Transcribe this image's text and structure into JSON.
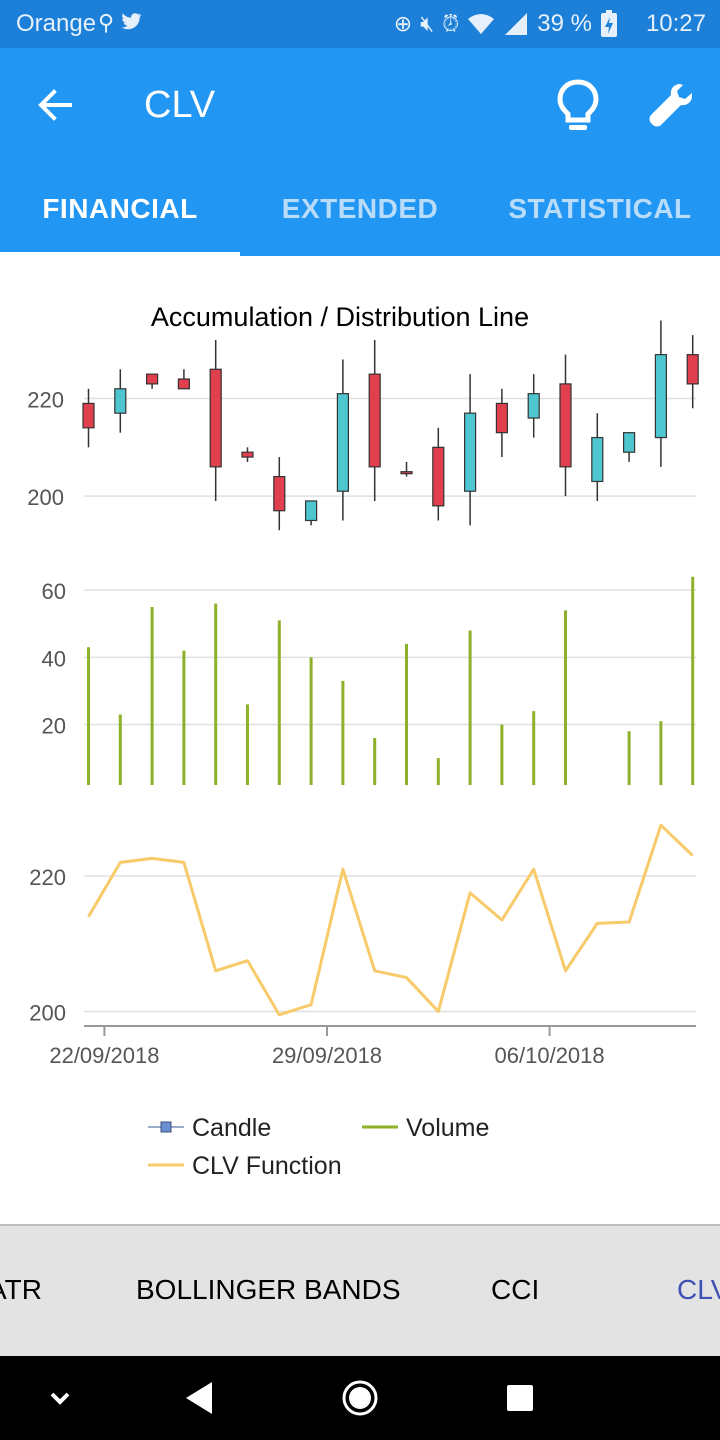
{
  "status_bar": {
    "carrier": "Orange",
    "left_icons": [
      "usb-icon",
      "twitter-icon"
    ],
    "right_icons": [
      "data-saver-icon",
      "mute-icon",
      "alarm-icon",
      "wifi-icon",
      "signal-icon"
    ],
    "battery": "39 %",
    "time": "10:27"
  },
  "app_bar": {
    "title": "CLV",
    "back_icon": "arrow-back-icon",
    "action_icons": [
      "lightbulb-icon",
      "wrench-icon"
    ]
  },
  "tabs": [
    {
      "label": "FINANCIAL",
      "active": true
    },
    {
      "label": "EXTENDED",
      "active": false
    },
    {
      "label": "STATISTICAL",
      "active": false
    }
  ],
  "bottom_tabs": [
    {
      "label": "ATR",
      "selected": false
    },
    {
      "label": "BOLLINGER BANDS",
      "selected": false
    },
    {
      "label": "CCI",
      "selected": false
    },
    {
      "label": "CLV",
      "selected": true
    }
  ],
  "colors": {
    "app_bar": "#2196f3",
    "status_bar": "#1c7fd8",
    "candle_down": "#e0404e",
    "candle_up": "#4ec6cf",
    "volume": "#8db12a",
    "clv_line": "#f7ca6a",
    "grid": "#e0e0e0",
    "selected_bottom_tab": "#3f51b5"
  },
  "chart_data": {
    "type": "combined",
    "title": "Accumulation / Distribution Line",
    "x_tick_labels": [
      "22/09/2018",
      "29/09/2018",
      "06/10/2018"
    ],
    "x_tick_index": [
      0.5,
      7.5,
      14.5
    ],
    "legend": [
      {
        "name": "Candle",
        "marker": "square"
      },
      {
        "name": "Volume",
        "marker": "line"
      },
      {
        "name": "CLV Function",
        "marker": "line"
      }
    ],
    "legend_position": "bottom",
    "candles": {
      "ylim": [
        191,
        232
      ],
      "yticks": [
        200,
        220
      ],
      "ohlc": [
        {
          "o": 219,
          "h": 222,
          "l": 210,
          "c": 214
        },
        {
          "o": 217,
          "h": 226,
          "l": 213,
          "c": 222
        },
        {
          "o": 225,
          "h": 225,
          "l": 222,
          "c": 223
        },
        {
          "o": 224,
          "h": 226,
          "l": 222,
          "c": 222
        },
        {
          "o": 226,
          "h": 232,
          "l": 199,
          "c": 206
        },
        {
          "o": 209,
          "h": 210,
          "l": 207,
          "c": 208
        },
        {
          "o": 204,
          "h": 208,
          "l": 193,
          "c": 197
        },
        {
          "o": 195,
          "h": 199,
          "l": 194,
          "c": 199
        },
        {
          "o": 201,
          "h": 228,
          "l": 195,
          "c": 221
        },
        {
          "o": 225,
          "h": 232,
          "l": 199,
          "c": 206
        },
        {
          "o": 205,
          "h": 207,
          "l": 204,
          "c": 205
        },
        {
          "o": 210,
          "h": 214,
          "l": 195,
          "c": 198
        },
        {
          "o": 201,
          "h": 225,
          "l": 194,
          "c": 217
        },
        {
          "o": 219,
          "h": 222,
          "l": 208,
          "c": 213
        },
        {
          "o": 216,
          "h": 225,
          "l": 212,
          "c": 221
        },
        {
          "o": 223,
          "h": 229,
          "l": 200,
          "c": 206
        },
        {
          "o": 203,
          "h": 217,
          "l": 199,
          "c": 212
        },
        {
          "o": 209,
          "h": 213,
          "l": 207,
          "c": 213
        },
        {
          "o": 212,
          "h": 236,
          "l": 206,
          "c": 229
        },
        {
          "o": 229,
          "h": 233,
          "l": 218,
          "c": 223
        }
      ]
    },
    "volume": {
      "ylim": [
        2,
        66
      ],
      "yticks": [
        20,
        40,
        60
      ],
      "values": [
        43,
        23,
        55,
        42,
        56,
        26,
        51,
        40,
        33,
        16,
        44,
        10,
        48,
        20,
        24,
        54,
        null,
        18,
        21,
        64
      ]
    },
    "clv": {
      "ylim": [
        198,
        229
      ],
      "yticks": [
        200,
        220
      ],
      "values": [
        214,
        222,
        222.6,
        222,
        206,
        207.5,
        199.5,
        201,
        221,
        206,
        205,
        200,
        217.5,
        213.5,
        221,
        206,
        213,
        213.2,
        227.5,
        223
      ]
    }
  }
}
